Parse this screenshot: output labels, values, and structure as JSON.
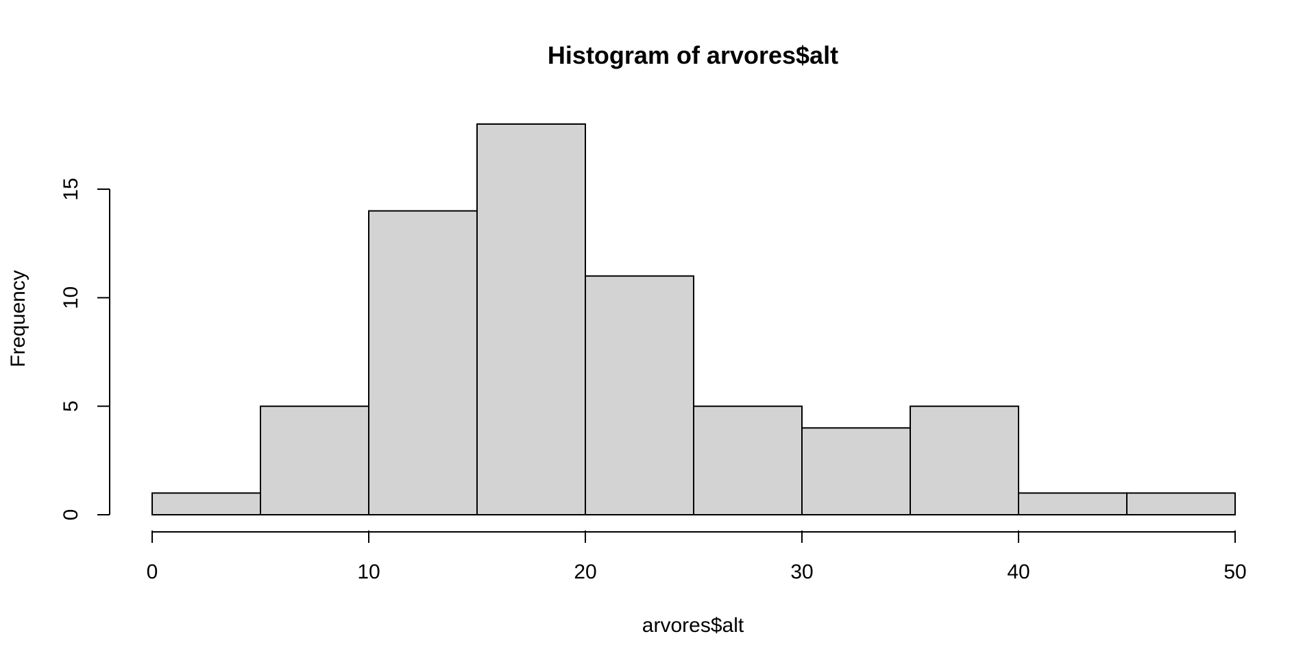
{
  "chart_data": {
    "type": "bar",
    "title": "Histogram of arvores$alt",
    "xlabel": "arvores$alt",
    "ylabel": "Frequency",
    "bins": [
      {
        "start": 0,
        "end": 5,
        "count": 1
      },
      {
        "start": 5,
        "end": 10,
        "count": 5
      },
      {
        "start": 10,
        "end": 15,
        "count": 14
      },
      {
        "start": 15,
        "end": 20,
        "count": 18
      },
      {
        "start": 20,
        "end": 25,
        "count": 11
      },
      {
        "start": 25,
        "end": 30,
        "count": 5
      },
      {
        "start": 30,
        "end": 35,
        "count": 4
      },
      {
        "start": 35,
        "end": 40,
        "count": 5
      },
      {
        "start": 40,
        "end": 45,
        "count": 1
      },
      {
        "start": 45,
        "end": 50,
        "count": 1
      }
    ],
    "xlim": [
      0,
      50
    ],
    "ylim": [
      0,
      18
    ],
    "x_ticks": [
      0,
      10,
      20,
      30,
      40,
      50
    ],
    "y_ticks": [
      0,
      5,
      10,
      15
    ],
    "grid": false,
    "bar_fill": "#d3d3d3",
    "bar_stroke": "#000000"
  }
}
